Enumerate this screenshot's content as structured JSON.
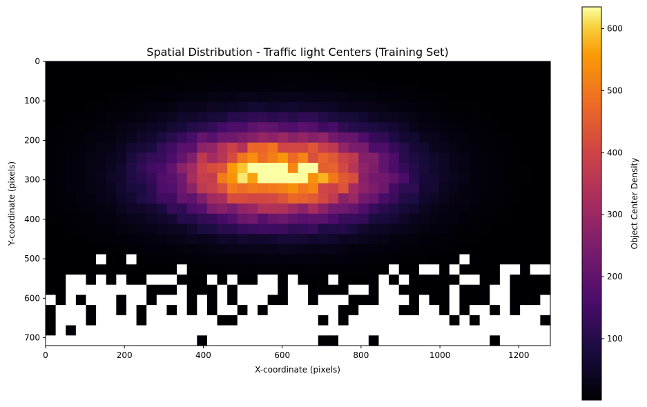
{
  "chart_data": {
    "type": "heatmap",
    "title": "Spatial Distribution - Traffic light Centers (Training Set)",
    "xlabel": "X-coordinate (pixels)",
    "ylabel": "Y-coordinate (pixels)",
    "colorbar_label": "Object Center Density",
    "xlim": [
      0,
      1280
    ],
    "ylim": [
      720,
      0
    ],
    "x_ticks": [
      0,
      200,
      400,
      600,
      800,
      1000,
      1200
    ],
    "y_ticks": [
      0,
      100,
      200,
      300,
      400,
      500,
      600,
      700
    ],
    "colorbar_ticks": [
      100,
      200,
      300,
      400,
      500,
      600
    ],
    "colorbar_range": [
      1,
      635
    ],
    "colormap": "inferno",
    "empty_bin_color": "#ffffff",
    "grid": false,
    "bins": [
      50,
      28
    ],
    "peak": {
      "x": 590,
      "y": 285,
      "value": 635
    },
    "spread": {
      "sx": 260,
      "sy": 110
    }
  }
}
